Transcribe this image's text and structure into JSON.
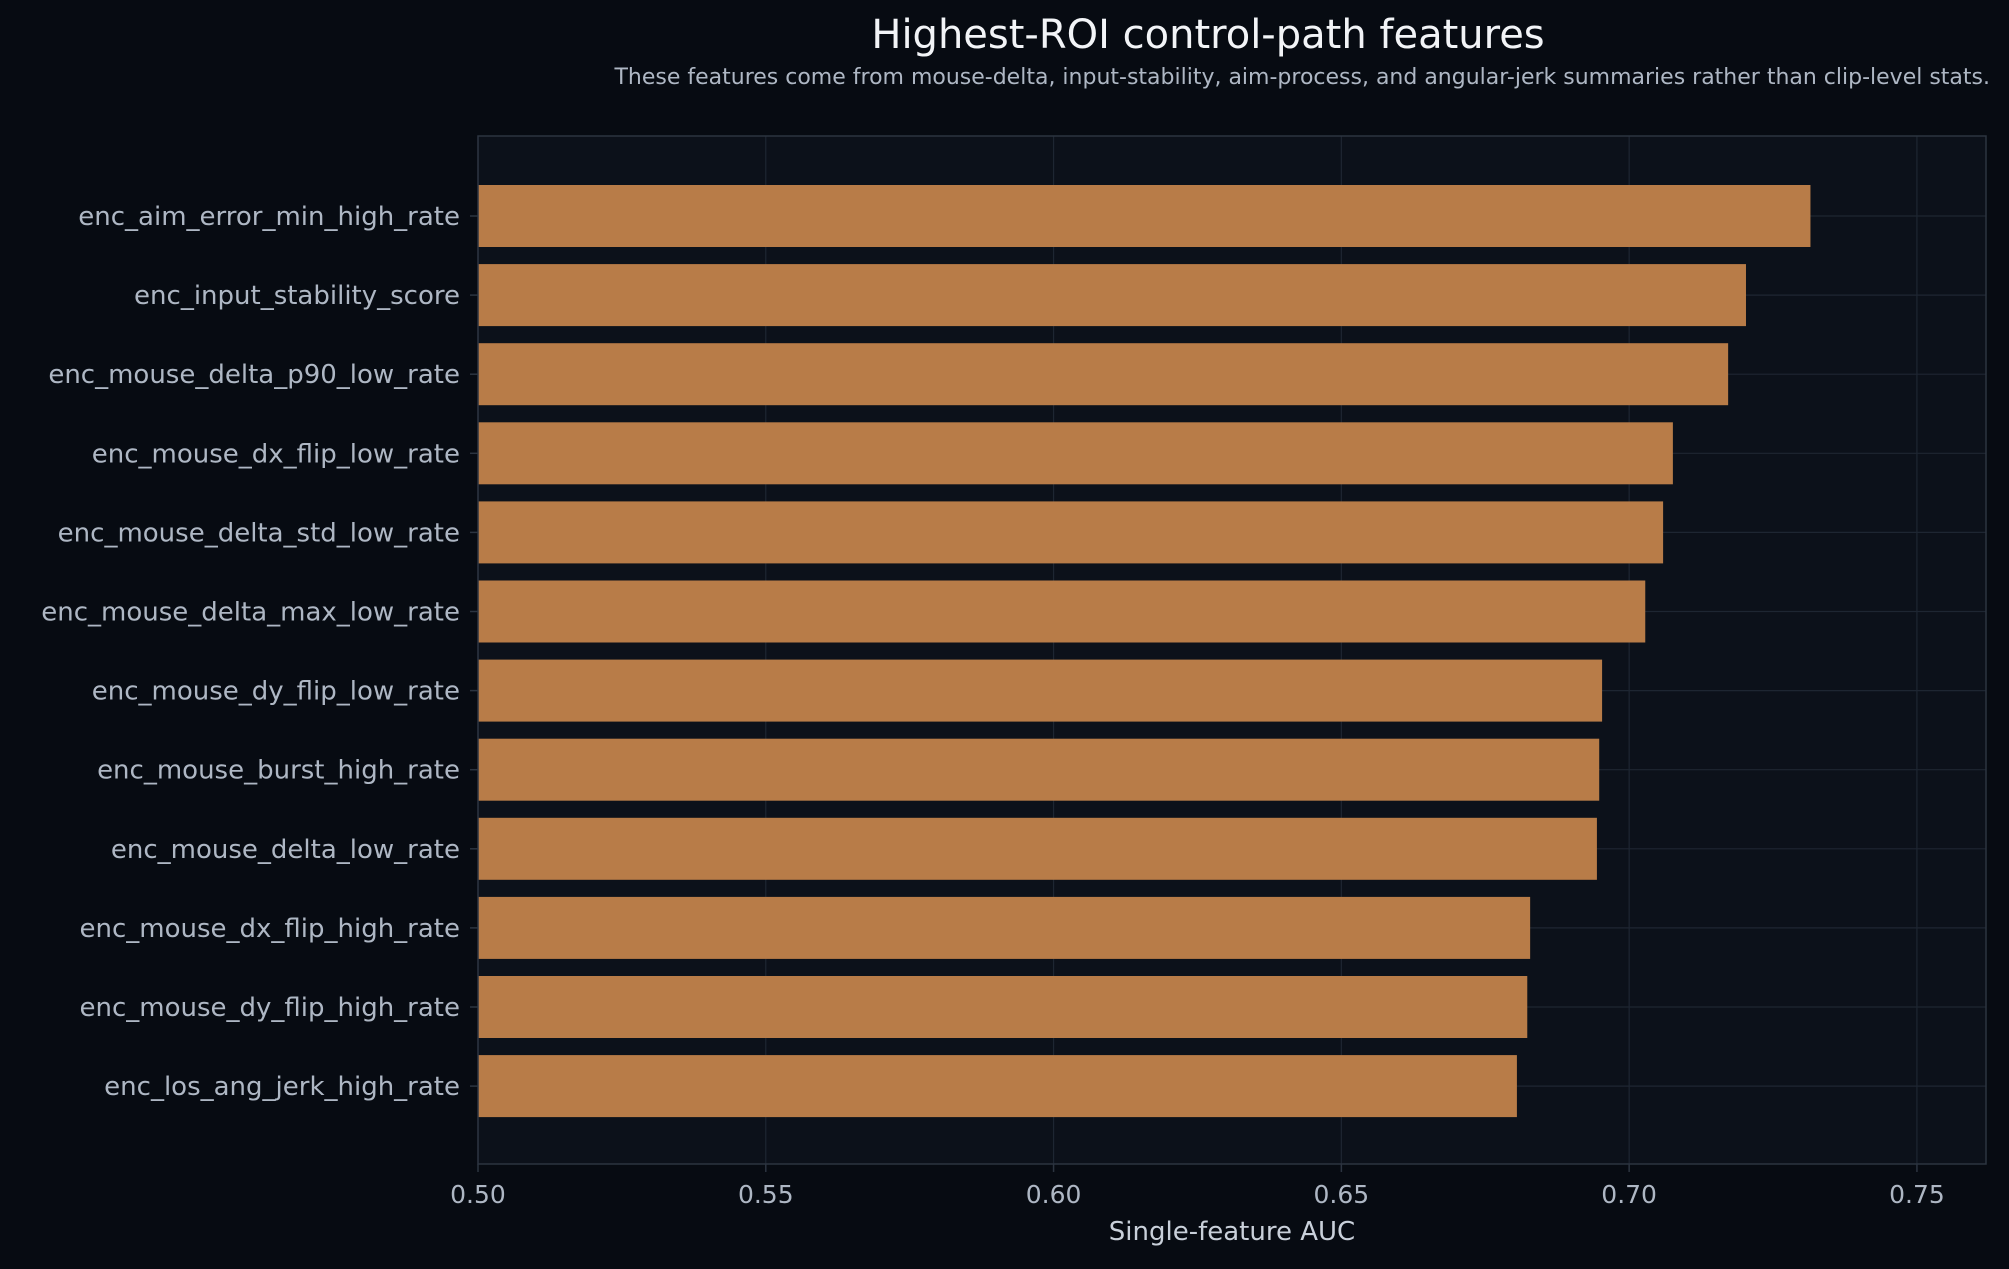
{
  "chart_data": {
    "type": "bar",
    "orientation": "horizontal",
    "title": "Highest-ROI control-path features",
    "subtitle": "These features come from mouse-delta, input-stability, aim-process, and angular-jerk summaries rather than clip-level stats.",
    "xlabel": "Single-feature AUC",
    "ylabel": "",
    "xlim": [
      0.5,
      0.762
    ],
    "xticks": [
      "0.50",
      "0.55",
      "0.60",
      "0.65",
      "0.70",
      "0.75"
    ],
    "grid": true,
    "categories": [
      "enc_aim_error_min_high_rate",
      "enc_input_stability_score",
      "enc_mouse_delta_p90_low_rate",
      "enc_mouse_dx_flip_low_rate",
      "enc_mouse_delta_std_low_rate",
      "enc_mouse_delta_max_low_rate",
      "enc_mouse_dy_flip_low_rate",
      "enc_mouse_burst_high_rate",
      "enc_mouse_delta_low_rate",
      "enc_mouse_dx_flip_high_rate",
      "enc_mouse_dy_flip_high_rate",
      "enc_los_ang_jerk_high_rate"
    ],
    "values": [
      0.7315,
      0.7203,
      0.7172,
      0.7076,
      0.7059,
      0.7028,
      0.6953,
      0.6948,
      0.6944,
      0.6828,
      0.6823,
      0.6805
    ],
    "colors": {
      "background": "#070b12",
      "plot_background": "#0c111a",
      "bar": "#b87c48",
      "grid": "#1e2632",
      "axis": "#2c3440",
      "text": "#aeb7c4",
      "title": "#f2f4f7"
    }
  }
}
